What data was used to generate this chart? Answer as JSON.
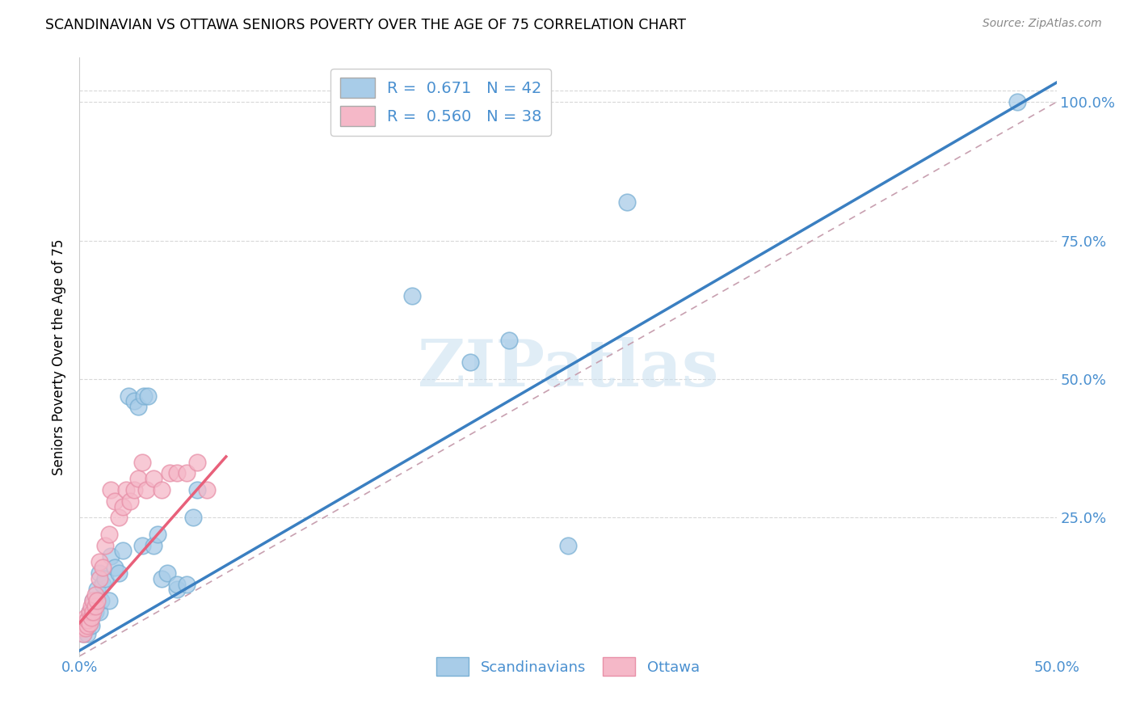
{
  "title": "SCANDINAVIAN VS OTTAWA SENIORS POVERTY OVER THE AGE OF 75 CORRELATION CHART",
  "source": "Source: ZipAtlas.com",
  "ylabel": "Seniors Poverty Over the Age of 75",
  "xlim": [
    0.0,
    0.5
  ],
  "ylim": [
    0.0,
    1.08
  ],
  "x_ticks": [
    0.0,
    0.1,
    0.2,
    0.3,
    0.4,
    0.5
  ],
  "x_tick_labels": [
    "0.0%",
    "",
    "",
    "",
    "",
    "50.0%"
  ],
  "y_ticks": [
    0.0,
    0.25,
    0.5,
    0.75,
    1.0
  ],
  "y_tick_labels": [
    "",
    "25.0%",
    "50.0%",
    "75.0%",
    "100.0%"
  ],
  "blue_color": "#a8cce8",
  "blue_edge_color": "#7ab0d4",
  "blue_line_color": "#3a7fc1",
  "pink_color": "#f5b8c8",
  "pink_edge_color": "#e890a8",
  "pink_line_color": "#e8607a",
  "ref_line_color": "#c8a0b0",
  "grid_color": "#d8d8d8",
  "tick_label_color": "#4a90d0",
  "scandinavians_x": [
    0.002,
    0.003,
    0.003,
    0.004,
    0.005,
    0.005,
    0.006,
    0.006,
    0.007,
    0.008,
    0.009,
    0.01,
    0.01,
    0.011,
    0.012,
    0.013,
    0.015,
    0.016,
    0.018,
    0.02,
    0.022,
    0.025,
    0.028,
    0.03,
    0.032,
    0.033,
    0.035,
    0.038,
    0.04,
    0.042,
    0.045,
    0.05,
    0.05,
    0.055,
    0.058,
    0.06,
    0.17,
    0.2,
    0.22,
    0.25,
    0.28,
    0.48
  ],
  "scandinavians_y": [
    0.04,
    0.05,
    0.055,
    0.04,
    0.06,
    0.08,
    0.07,
    0.055,
    0.1,
    0.08,
    0.12,
    0.08,
    0.15,
    0.1,
    0.13,
    0.14,
    0.1,
    0.18,
    0.16,
    0.15,
    0.19,
    0.47,
    0.46,
    0.45,
    0.2,
    0.47,
    0.47,
    0.2,
    0.22,
    0.14,
    0.15,
    0.12,
    0.13,
    0.13,
    0.25,
    0.3,
    0.65,
    0.53,
    0.57,
    0.2,
    0.82,
    1.0
  ],
  "ottawa_x": [
    0.001,
    0.002,
    0.002,
    0.003,
    0.003,
    0.004,
    0.004,
    0.005,
    0.005,
    0.006,
    0.006,
    0.007,
    0.007,
    0.008,
    0.008,
    0.009,
    0.01,
    0.01,
    0.012,
    0.013,
    0.015,
    0.016,
    0.018,
    0.02,
    0.022,
    0.024,
    0.026,
    0.028,
    0.03,
    0.032,
    0.034,
    0.038,
    0.042,
    0.046,
    0.05,
    0.055,
    0.06,
    0.065
  ],
  "ottawa_y": [
    0.05,
    0.04,
    0.06,
    0.05,
    0.07,
    0.055,
    0.065,
    0.06,
    0.08,
    0.07,
    0.09,
    0.08,
    0.1,
    0.09,
    0.11,
    0.1,
    0.14,
    0.17,
    0.16,
    0.2,
    0.22,
    0.3,
    0.28,
    0.25,
    0.27,
    0.3,
    0.28,
    0.3,
    0.32,
    0.35,
    0.3,
    0.32,
    0.3,
    0.33,
    0.33,
    0.33,
    0.35,
    0.3
  ],
  "blue_slope": 2.05,
  "blue_intercept": 0.01,
  "pink_slope": 4.0,
  "pink_intercept": 0.06,
  "pink_line_xmax": 0.075
}
